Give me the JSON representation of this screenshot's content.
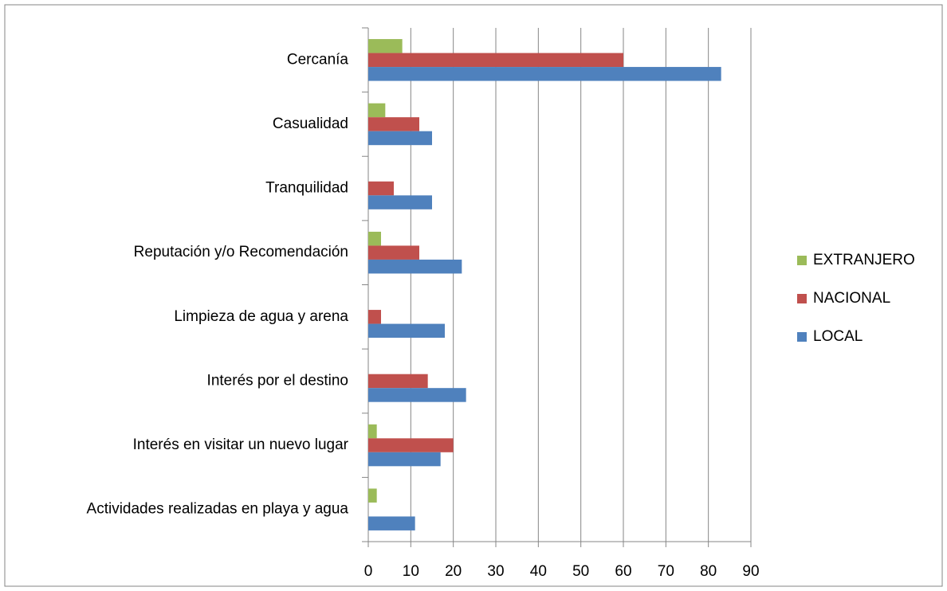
{
  "chart_data": {
    "type": "bar",
    "orientation": "horizontal",
    "categories": [
      "Cercanía",
      "Casualidad",
      "Tranquilidad",
      "Reputación y/o Recomendación",
      "Limpieza de agua y arena",
      "Interés por el destino",
      "Interés en visitar un nuevo lugar",
      "Actividades realizadas en playa y agua"
    ],
    "series": [
      {
        "name": "EXTRANJERO",
        "color": "#9bbb59",
        "values": [
          8,
          4,
          0,
          3,
          0,
          0,
          2,
          2
        ]
      },
      {
        "name": "NACIONAL",
        "color": "#c0504d",
        "values": [
          60,
          12,
          6,
          12,
          3,
          14,
          20,
          0
        ]
      },
      {
        "name": "LOCAL",
        "color": "#4f81bd",
        "values": [
          83,
          15,
          15,
          22,
          18,
          23,
          17,
          11
        ]
      }
    ],
    "xlim": [
      0,
      90
    ],
    "xticks": [
      0,
      10,
      20,
      30,
      40,
      50,
      60,
      70,
      80,
      90
    ],
    "grid": true,
    "legend": "right"
  }
}
